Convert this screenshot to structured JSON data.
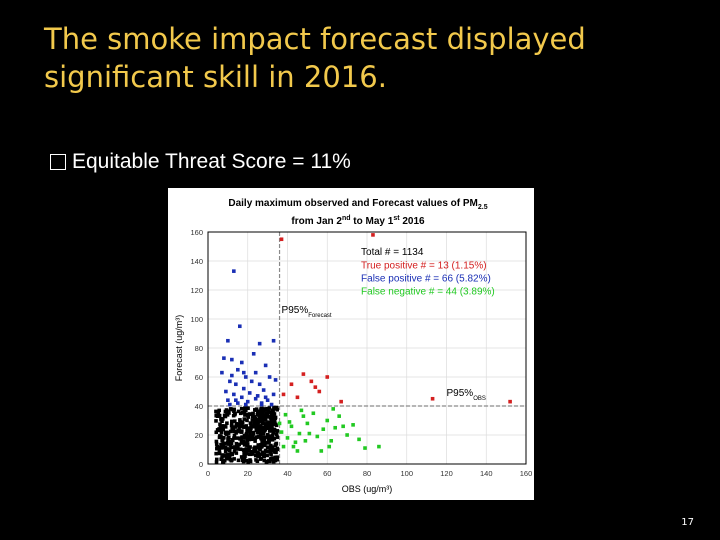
{
  "slide": {
    "title": "The smoke impact forecast displayed significant skill in 2016.",
    "bullet": "Equitable Threat Score = 11%",
    "page_number": "17"
  },
  "chart_data": {
    "type": "scatter",
    "title_line1": "Daily maximum observed and Forecast values of PM",
    "title_sub": "2.5",
    "title_line2_a": "from Jan 2",
    "title_line2_sup1": "nd",
    "title_line2_b": " to May 1",
    "title_line2_sup2": "st",
    "title_line2_c": " 2016",
    "xlabel": "OBS (ug/m³)",
    "ylabel": "Forecast (ug/m³)",
    "xlim": [
      0,
      160
    ],
    "ylim": [
      0,
      160
    ],
    "xticks": [
      0,
      20,
      40,
      60,
      80,
      100,
      120,
      140,
      160
    ],
    "yticks": [
      0,
      20,
      40,
      60,
      80,
      100,
      120,
      140,
      160
    ],
    "grid": true,
    "p95_forecast": 40,
    "p95_obs": 36,
    "p95_forecast_label": "P95%",
    "p95_forecast_sub": "Forecast",
    "p95_obs_label": "P95%",
    "p95_obs_sub": "OBS",
    "legend": {
      "total": "Total # = 1134",
      "true_positive": "True positive # = 13 (1.15%)",
      "false_positive": "False positive # = 66 (5.82%)",
      "false_negative": "False negative # = 44 (3.89%)"
    },
    "colors": {
      "true_positive": "#d42020",
      "false_positive": "#1a2fb5",
      "false_negative": "#22c922",
      "true_negative": "#000000"
    },
    "true_positive_points": [
      [
        37,
        155
      ],
      [
        83,
        158
      ],
      [
        42,
        55
      ],
      [
        48,
        62
      ],
      [
        52,
        57
      ],
      [
        54,
        53
      ],
      [
        60,
        60
      ],
      [
        38,
        48
      ],
      [
        45,
        46
      ],
      [
        67,
        43
      ],
      [
        113,
        45
      ],
      [
        152,
        43
      ],
      [
        56,
        50
      ]
    ],
    "false_positive_points": [
      [
        13,
        133
      ],
      [
        16,
        95
      ],
      [
        10,
        85
      ],
      [
        26,
        83
      ],
      [
        33,
        85
      ],
      [
        12,
        72
      ],
      [
        15,
        65
      ],
      [
        19,
        60
      ],
      [
        24,
        63
      ],
      [
        29,
        68
      ],
      [
        11,
        57
      ],
      [
        14,
        55
      ],
      [
        18,
        52
      ],
      [
        22,
        57
      ],
      [
        26,
        55
      ],
      [
        31,
        60
      ],
      [
        9,
        50
      ],
      [
        13,
        48
      ],
      [
        17,
        46
      ],
      [
        21,
        49
      ],
      [
        25,
        47
      ],
      [
        28,
        51
      ],
      [
        33,
        48
      ],
      [
        10,
        44
      ],
      [
        15,
        42
      ],
      [
        20,
        43
      ],
      [
        24,
        45
      ],
      [
        27,
        42
      ],
      [
        30,
        44
      ],
      [
        12,
        61
      ],
      [
        17,
        70
      ],
      [
        23,
        76
      ],
      [
        8,
        73
      ],
      [
        11,
        41
      ],
      [
        19,
        41
      ],
      [
        27,
        41
      ],
      [
        32,
        41
      ],
      [
        14,
        44
      ],
      [
        29,
        46
      ],
      [
        34,
        58
      ],
      [
        7,
        63
      ],
      [
        18,
        63
      ]
    ],
    "false_negative_points": [
      [
        37,
        22
      ],
      [
        40,
        18
      ],
      [
        42,
        26
      ],
      [
        44,
        15
      ],
      [
        46,
        21
      ],
      [
        38,
        12
      ],
      [
        48,
        33
      ],
      [
        50,
        28
      ],
      [
        53,
        35
      ],
      [
        55,
        19
      ],
      [
        58,
        24
      ],
      [
        60,
        30
      ],
      [
        62,
        16
      ],
      [
        64,
        25
      ],
      [
        66,
        33
      ],
      [
        70,
        20
      ],
      [
        73,
        27
      ],
      [
        76,
        17
      ],
      [
        79,
        11
      ],
      [
        86,
        12
      ],
      [
        41,
        29
      ],
      [
        45,
        9
      ],
      [
        49,
        16
      ],
      [
        39,
        34
      ],
      [
        63,
        38
      ],
      [
        57,
        9
      ],
      [
        43,
        12
      ],
      [
        51,
        21
      ],
      [
        61,
        12
      ],
      [
        68,
        26
      ],
      [
        36,
        28
      ],
      [
        47,
        37
      ]
    ],
    "true_negative_points": []
  }
}
